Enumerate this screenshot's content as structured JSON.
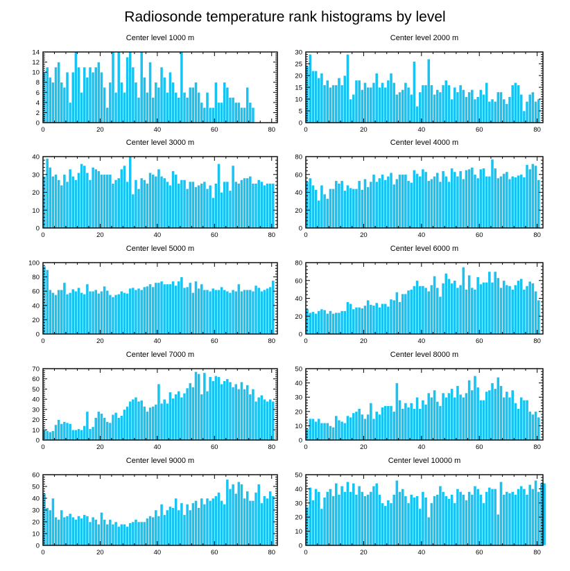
{
  "page": {
    "title": "Radiosonde temperature rank histograms by level"
  },
  "colors": {
    "bar": "#18c3f2",
    "frame": "#000000",
    "background": "#ffffff"
  },
  "chart_data": [
    {
      "type": "bar",
      "title": "Center level 1000 m",
      "x_start": 0,
      "xlim": [
        0,
        82
      ],
      "xticks": [
        0,
        20,
        40,
        60,
        80
      ],
      "ylim": [
        0,
        14
      ],
      "yticks": [
        0,
        2,
        4,
        6,
        8,
        10,
        12,
        14
      ],
      "values": [
        10,
        11,
        9,
        8,
        11,
        12,
        8,
        7,
        10,
        4,
        10,
        14,
        11,
        6,
        11,
        9,
        11,
        10,
        11,
        12,
        10,
        7,
        3,
        8,
        14,
        6,
        14,
        8,
        6,
        13,
        14,
        11,
        8,
        5,
        14,
        9,
        6,
        12,
        5,
        8,
        7,
        11,
        9,
        6,
        10,
        8,
        6,
        5,
        14,
        6,
        5,
        7,
        7,
        8,
        6,
        4,
        3,
        6,
        3,
        3,
        8,
        4,
        4,
        8,
        7,
        5,
        5,
        4,
        4,
        3,
        3,
        7,
        4,
        3
      ]
    },
    {
      "type": "bar",
      "title": "Center level 2000 m",
      "x_start": 0,
      "xlim": [
        0,
        82
      ],
      "xticks": [
        0,
        20,
        40,
        60,
        80
      ],
      "ylim": [
        0,
        30
      ],
      "yticks": [
        0,
        5,
        10,
        15,
        20,
        25,
        30
      ],
      "values": [
        24,
        29,
        22,
        22,
        19,
        21,
        16,
        18,
        15,
        16,
        16,
        19,
        16,
        20,
        29,
        10,
        12,
        18,
        18,
        14,
        17,
        15,
        15,
        17,
        21,
        15,
        17,
        15,
        18,
        21,
        17,
        12,
        13,
        14,
        17,
        15,
        12,
        26,
        7,
        13,
        16,
        16,
        27,
        16,
        12,
        14,
        13,
        16,
        18,
        16,
        10,
        15,
        13,
        16,
        14,
        11,
        13,
        14,
        10,
        11,
        14,
        12,
        17,
        9,
        10,
        9,
        13,
        13,
        10,
        8,
        11,
        16,
        17,
        16,
        12,
        5,
        9,
        12,
        13,
        9,
        10
      ]
    },
    {
      "type": "bar",
      "title": "Center level 3000 m",
      "x_start": 0,
      "xlim": [
        0,
        82
      ],
      "xticks": [
        0,
        20,
        40,
        60,
        80
      ],
      "ylim": [
        0,
        40
      ],
      "yticks": [
        0,
        10,
        20,
        30,
        40
      ],
      "values": [
        29,
        39,
        34,
        29,
        30,
        27,
        24,
        30,
        26,
        33,
        29,
        27,
        31,
        36,
        35,
        31,
        27,
        34,
        33,
        32,
        30,
        30,
        30,
        30,
        25,
        27,
        28,
        33,
        35,
        26,
        40,
        19,
        27,
        22,
        28,
        27,
        25,
        31,
        30,
        29,
        33,
        29,
        28,
        26,
        24,
        32,
        30,
        25,
        27,
        27,
        22,
        26,
        26,
        23,
        24,
        25,
        26,
        22,
        24,
        17,
        25,
        36,
        20,
        26,
        26,
        21,
        35,
        26,
        25,
        27,
        28,
        28,
        29,
        25,
        25,
        27,
        26,
        24,
        25,
        25,
        25
      ]
    },
    {
      "type": "bar",
      "title": "Center level 4000 m",
      "x_start": 0,
      "xlim": [
        0,
        82
      ],
      "xticks": [
        0,
        20,
        40,
        60,
        80
      ],
      "ylim": [
        0,
        80
      ],
      "yticks": [
        0,
        20,
        40,
        60,
        80
      ],
      "values": [
        52,
        56,
        48,
        43,
        31,
        48,
        38,
        33,
        44,
        44,
        53,
        50,
        53,
        42,
        48,
        45,
        44,
        44,
        53,
        43,
        55,
        46,
        52,
        60,
        52,
        56,
        60,
        54,
        58,
        62,
        49,
        55,
        60,
        60,
        60,
        53,
        51,
        65,
        61,
        58,
        66,
        63,
        53,
        55,
        58,
        62,
        52,
        64,
        58,
        52,
        67,
        63,
        58,
        64,
        55,
        65,
        66,
        68,
        60,
        56,
        66,
        67,
        58,
        58,
        77,
        67,
        56,
        58,
        61,
        63,
        55,
        58,
        57,
        59,
        60,
        57,
        71,
        66,
        72,
        70,
        54
      ]
    },
    {
      "type": "bar",
      "title": "Center level 5000 m",
      "x_start": 0,
      "xlim": [
        0,
        82
      ],
      "xticks": [
        0,
        20,
        40,
        60,
        80
      ],
      "ylim": [
        0,
        100
      ],
      "yticks": [
        0,
        20,
        40,
        60,
        80,
        100
      ],
      "values": [
        95,
        90,
        62,
        58,
        55,
        62,
        62,
        72,
        56,
        58,
        63,
        60,
        65,
        58,
        56,
        70,
        60,
        60,
        62,
        57,
        60,
        67,
        61,
        55,
        52,
        55,
        56,
        60,
        58,
        57,
        64,
        65,
        62,
        64,
        62,
        66,
        67,
        70,
        66,
        72,
        72,
        74,
        70,
        70,
        70,
        74,
        68,
        74,
        80,
        65,
        66,
        72,
        58,
        74,
        64,
        70,
        62,
        62,
        60,
        64,
        62,
        62,
        66,
        62,
        60,
        58,
        62,
        60,
        70,
        60,
        62,
        62,
        62,
        60,
        68,
        65,
        60,
        62,
        64,
        66,
        75
      ]
    },
    {
      "type": "bar",
      "title": "Center level 6000 m",
      "x_start": 0,
      "xlim": [
        0,
        82
      ],
      "xticks": [
        0,
        20,
        40,
        60,
        80
      ],
      "ylim": [
        0,
        80
      ],
      "yticks": [
        0,
        20,
        40,
        60,
        80
      ],
      "values": [
        28,
        24,
        25,
        23,
        26,
        28,
        27,
        23,
        26,
        23,
        24,
        24,
        26,
        26,
        36,
        34,
        28,
        30,
        30,
        29,
        32,
        38,
        33,
        32,
        35,
        30,
        34,
        34,
        31,
        39,
        38,
        47,
        36,
        45,
        45,
        49,
        50,
        54,
        60,
        54,
        54,
        52,
        48,
        55,
        65,
        52,
        42,
        57,
        68,
        62,
        57,
        60,
        52,
        55,
        75,
        50,
        66,
        52,
        50,
        64,
        56,
        58,
        58,
        70,
        58,
        70,
        63,
        52,
        60,
        55,
        54,
        50,
        55,
        60,
        62,
        50,
        54,
        59,
        57,
        48,
        38
      ]
    },
    {
      "type": "bar",
      "title": "Center level 7000 m",
      "x_start": 0,
      "xlim": [
        0,
        82
      ],
      "xticks": [
        0,
        20,
        40,
        60,
        80
      ],
      "ylim": [
        0,
        70
      ],
      "yticks": [
        0,
        10,
        20,
        30,
        40,
        50,
        60,
        70
      ],
      "values": [
        10,
        9,
        8,
        9,
        15,
        20,
        16,
        18,
        17,
        16,
        10,
        10,
        11,
        10,
        14,
        28,
        11,
        13,
        22,
        28,
        26,
        22,
        18,
        17,
        25,
        27,
        22,
        24,
        30,
        33,
        38,
        40,
        42,
        38,
        39,
        33,
        28,
        32,
        33,
        35,
        55,
        36,
        40,
        36,
        47,
        41,
        45,
        48,
        42,
        46,
        51,
        56,
        52,
        67,
        65,
        45,
        66,
        48,
        62,
        58,
        63,
        62,
        55,
        58,
        60,
        57,
        52,
        55,
        50,
        57,
        50,
        54,
        45,
        50,
        38,
        42,
        44,
        40,
        38,
        40,
        38
      ]
    },
    {
      "type": "bar",
      "title": "Center level 8000 m",
      "x_start": 0,
      "xlim": [
        0,
        82
      ],
      "xticks": [
        0,
        20,
        40,
        60,
        80
      ],
      "ylim": [
        0,
        50
      ],
      "yticks": [
        0,
        10,
        20,
        30,
        40,
        50
      ],
      "values": [
        8,
        15,
        15,
        13,
        15,
        12,
        12,
        12,
        10,
        9,
        17,
        14,
        13,
        12,
        17,
        16,
        19,
        20,
        22,
        18,
        15,
        18,
        26,
        15,
        20,
        18,
        23,
        24,
        24,
        24,
        20,
        40,
        28,
        22,
        26,
        23,
        26,
        22,
        30,
        22,
        28,
        25,
        33,
        30,
        35,
        27,
        24,
        33,
        30,
        33,
        36,
        30,
        38,
        32,
        30,
        33,
        42,
        35,
        45,
        37,
        28,
        28,
        34,
        35,
        40,
        36,
        44,
        38,
        30,
        34,
        30,
        35,
        26,
        22,
        30,
        28,
        28,
        20,
        18,
        20,
        16
      ]
    },
    {
      "type": "bar",
      "title": "Center level 9000 m",
      "x_start": 0,
      "xlim": [
        0,
        82
      ],
      "xticks": [
        0,
        20,
        40,
        60,
        80
      ],
      "ylim": [
        0,
        60
      ],
      "yticks": [
        0,
        10,
        20,
        30,
        40,
        50,
        60
      ],
      "values": [
        44,
        32,
        30,
        40,
        24,
        22,
        30,
        24,
        25,
        27,
        24,
        22,
        25,
        23,
        26,
        25,
        20,
        24,
        22,
        18,
        28,
        22,
        18,
        22,
        18,
        20,
        16,
        18,
        18,
        16,
        19,
        20,
        22,
        20,
        20,
        20,
        23,
        25,
        24,
        30,
        25,
        35,
        26,
        30,
        33,
        32,
        40,
        30,
        36,
        26,
        35,
        30,
        36,
        38,
        32,
        40,
        35,
        40,
        38,
        40,
        42,
        45,
        38,
        35,
        56,
        48,
        52,
        44,
        54,
        52,
        40,
        46,
        38,
        38,
        45,
        52,
        36,
        42,
        40,
        46,
        42
      ]
    },
    {
      "type": "bar",
      "title": "Center level 10000 m",
      "x_start": 0,
      "xlim": [
        0,
        82
      ],
      "xticks": [
        0,
        20,
        40,
        60,
        80
      ],
      "ylim": [
        0,
        50
      ],
      "yticks": [
        0,
        10,
        20,
        30,
        40,
        50
      ],
      "values": [
        27,
        41,
        32,
        40,
        38,
        26,
        34,
        38,
        40,
        35,
        44,
        36,
        42,
        38,
        45,
        38,
        44,
        36,
        42,
        38,
        35,
        36,
        38,
        42,
        44,
        36,
        30,
        28,
        32,
        30,
        36,
        46,
        38,
        40,
        35,
        30,
        36,
        34,
        35,
        26,
        38,
        34,
        20,
        30,
        35,
        36,
        42,
        38,
        35,
        33,
        36,
        30,
        40,
        38,
        36,
        32,
        38,
        36,
        42,
        40,
        36,
        30,
        38,
        41,
        40,
        40,
        22,
        45,
        36,
        38,
        37,
        38,
        36,
        40,
        42,
        40,
        36,
        43,
        40,
        46,
        38,
        44,
        44
      ]
    }
  ]
}
